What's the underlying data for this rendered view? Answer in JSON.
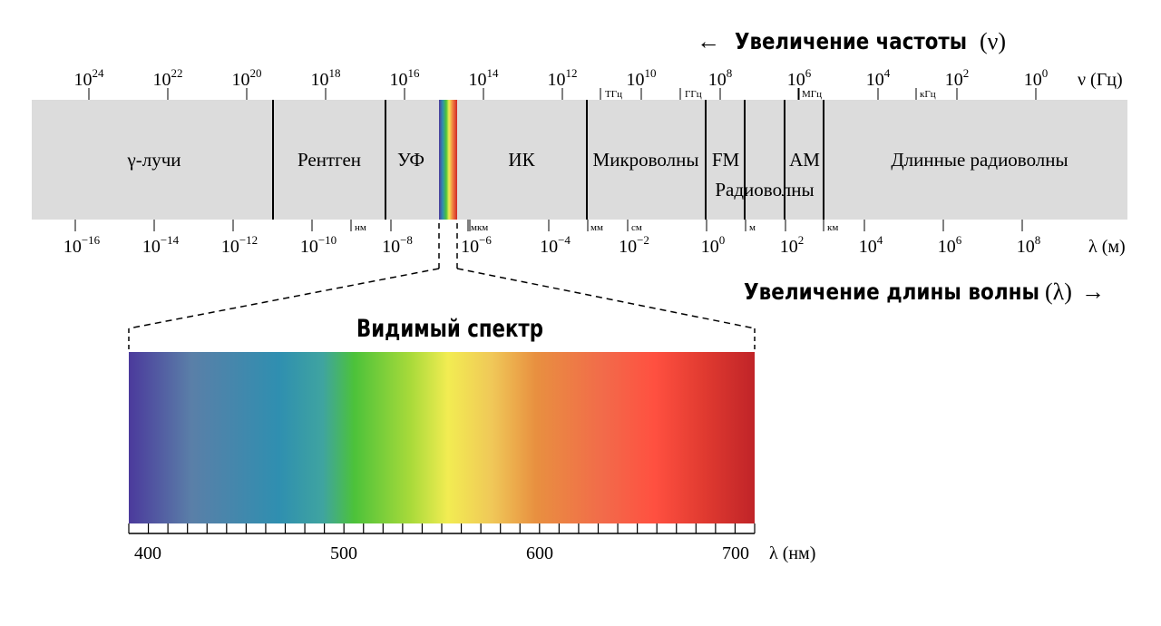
{
  "freq_header": {
    "arrow": "←",
    "text": "Увеличение частоты",
    "symbol": "(ν)"
  },
  "freq_unit": "ν (Гц)",
  "freq_ticks": [
    {
      "base": "10",
      "exp": "24"
    },
    {
      "base": "10",
      "exp": "22"
    },
    {
      "base": "10",
      "exp": "20"
    },
    {
      "base": "10",
      "exp": "18"
    },
    {
      "base": "10",
      "exp": "16"
    },
    {
      "base": "10",
      "exp": "14"
    },
    {
      "base": "10",
      "exp": "12"
    },
    {
      "base": "10",
      "exp": "10"
    },
    {
      "base": "10",
      "exp": "8"
    },
    {
      "base": "10",
      "exp": "6"
    },
    {
      "base": "10",
      "exp": "4"
    },
    {
      "base": "10",
      "exp": "2"
    },
    {
      "base": "10",
      "exp": "0"
    }
  ],
  "freq_unit_marks": [
    "ТГц",
    "ГГц",
    "МГц",
    "кГц"
  ],
  "bands": [
    "γ-лучи",
    "Рентген",
    "УФ",
    "ИК",
    "Микроволны",
    "FM",
    "Радиоволны",
    "AM",
    "Длинные радиоволны"
  ],
  "wave_unit": "λ (м)",
  "wave_ticks": [
    {
      "base": "10",
      "exp": "−16"
    },
    {
      "base": "10",
      "exp": "−14"
    },
    {
      "base": "10",
      "exp": "−12"
    },
    {
      "base": "10",
      "exp": "−10"
    },
    {
      "base": "10",
      "exp": "−8"
    },
    {
      "base": "10",
      "exp": "−6"
    },
    {
      "base": "10",
      "exp": "−4"
    },
    {
      "base": "10",
      "exp": "−2"
    },
    {
      "base": "10",
      "exp": "0"
    },
    {
      "base": "10",
      "exp": "2"
    },
    {
      "base": "10",
      "exp": "4"
    },
    {
      "base": "10",
      "exp": "6"
    },
    {
      "base": "10",
      "exp": "8"
    }
  ],
  "wave_unit_marks": [
    "нм",
    "мкм",
    "мм",
    "см",
    "м",
    "км"
  ],
  "wave_header": {
    "text": "Увеличение длины волны",
    "symbol": "(λ)",
    "arrow": "→"
  },
  "visible": {
    "title": "Видимый спектр",
    "ticks": [
      "400",
      "500",
      "600",
      "700"
    ],
    "unit": "λ (нм)"
  },
  "colors": {
    "band_fill": "#dcdcdc",
    "spectrum_stops": [
      "#4b3a9c",
      "#5a7fa8",
      "#2f8fb0",
      "#3fa4a0",
      "#4cc23a",
      "#a8da3a",
      "#f2ec52",
      "#f0c858",
      "#e89040",
      "#f26a4a",
      "#ff5040",
      "#e03a30",
      "#c02428"
    ]
  }
}
